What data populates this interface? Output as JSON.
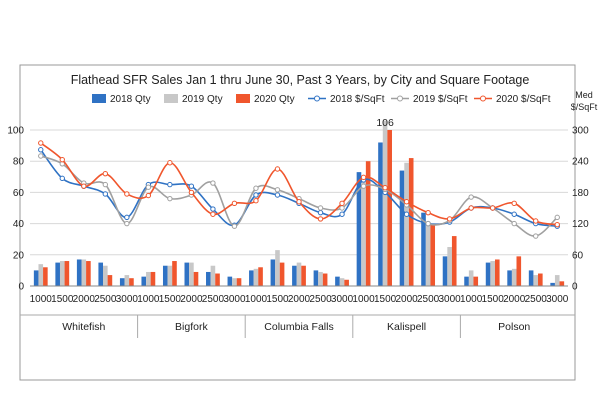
{
  "chart_data": {
    "type": "bar",
    "title": "Flathead SFR Sales Jan 1 thru June 30, Past 3 Years, by City and Square Footage",
    "y2label": "Med $/SqFt",
    "ylim": [
      0,
      100
    ],
    "y2lim": [
      0,
      300
    ],
    "yticks": [
      "0",
      "20",
      "40",
      "60",
      "80",
      "100"
    ],
    "y2ticks": [
      "0",
      "60",
      "120",
      "180",
      "240",
      "300"
    ],
    "grid": true,
    "legend_position": "top",
    "colors": {
      "q2018": "#2F72C4",
      "q2019": "#C8C8C8",
      "q2020": "#F0562D",
      "l2018": "#2F72C4",
      "l2019": "#A0A0A0",
      "l2020": "#F0562D"
    },
    "groups": [
      "Whitefish",
      "Bigfork",
      "Columbia Falls",
      "Kalispell",
      "Polson"
    ],
    "categories": [
      "1000",
      "1500",
      "2000",
      "2500",
      "3000"
    ],
    "annotations": [
      {
        "text": "106",
        "group": 3,
        "category": 1
      }
    ],
    "bar_series": [
      {
        "name": "2018 Qty",
        "values": [
          10,
          15,
          17,
          15,
          5,
          6,
          13,
          15,
          9,
          6,
          10,
          17,
          13,
          10,
          6,
          73,
          92,
          74,
          47,
          19,
          6,
          15,
          10,
          10,
          2
        ]
      },
      {
        "name": "2019 Qty",
        "values": [
          14,
          16,
          17,
          13,
          7,
          9,
          13,
          15,
          13,
          5,
          11,
          23,
          15,
          9,
          5,
          70,
          106,
          79,
          41,
          25,
          10,
          16,
          11,
          7,
          7
        ]
      },
      {
        "name": "2020 Qty",
        "values": [
          12,
          16,
          16,
          7,
          5,
          9,
          16,
          9,
          8,
          5,
          12,
          15,
          13,
          8,
          4,
          80,
          100,
          82,
          40,
          32,
          6,
          17,
          19,
          8,
          3
        ]
      }
    ],
    "line_series": [
      {
        "name": "2018 $/SqFt",
        "values": [
          262,
          207,
          192,
          177,
          132,
          195,
          195,
          192,
          148,
          117,
          175,
          175,
          159,
          141,
          138,
          204,
          180,
          138,
          120,
          123,
          150,
          150,
          138,
          120,
          115
        ]
      },
      {
        "name": "2019 $/SqFt",
        "values": [
          250,
          235,
          198,
          195,
          120,
          190,
          168,
          175,
          198,
          115,
          188,
          185,
          168,
          150,
          150,
          192,
          186,
          156,
          120,
          126,
          171,
          150,
          120,
          96,
          132
        ]
      },
      {
        "name": "2020 $/SqFt",
        "values": [
          275,
          243,
          192,
          216,
          177,
          174,
          237,
          180,
          138,
          159,
          164,
          225,
          162,
          129,
          159,
          209,
          189,
          162,
          141,
          129,
          150,
          150,
          159,
          125,
          118
        ]
      }
    ]
  }
}
